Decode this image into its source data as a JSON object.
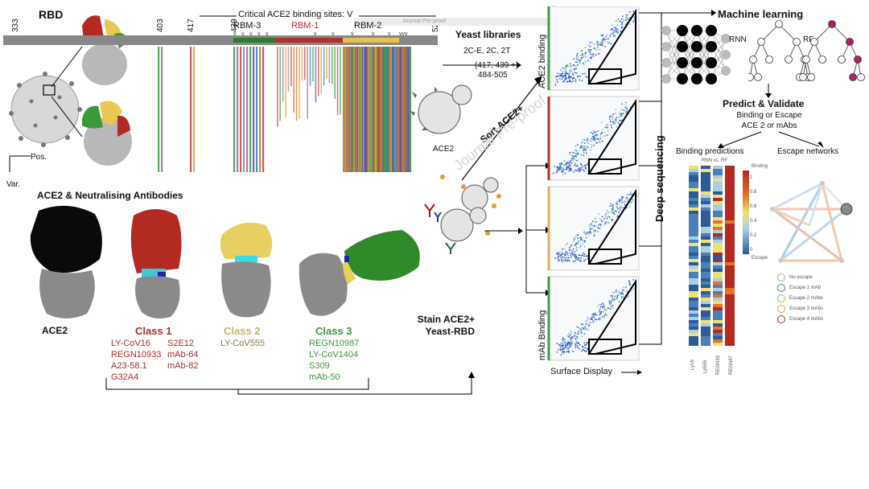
{
  "rbd": {
    "title": "RBD",
    "critical_label": "Critical ACE2 binding sites: V",
    "positions": [
      "333",
      "403",
      "417",
      "439",
      "52"
    ],
    "rbm_labels": [
      "RBM-3",
      "RBM-1",
      "RBM-2"
    ],
    "axis_x": "Pos.",
    "axis_y": "Var.",
    "watermark_top": "Journal Pre-proof"
  },
  "ace2_section": {
    "title": "ACE2 & Neutralising Antibodies",
    "ace2_label": "ACE2",
    "class1": {
      "title": "Class 1",
      "col1": [
        "LY-CoV16",
        "REGN10933",
        "A23-58.1",
        "G32A4"
      ],
      "col2": [
        "S2E12",
        "mAb-64",
        "mAb-82"
      ]
    },
    "class2": {
      "title": "Class 2",
      "items": [
        "LY-CoV555"
      ]
    },
    "class3": {
      "title": "Class 3",
      "items": [
        "REGN10987",
        "LY-CoV1404",
        "S309",
        "mAb-50"
      ]
    },
    "colors": {
      "class1": "#a8302a",
      "class2": "#c9b46a",
      "class3": "#3b9a3b",
      "ace2": "#000000"
    }
  },
  "yeast": {
    "title": "Yeast libraries",
    "mutations_line1": "2C-E, 2C, 2T",
    "mutations_line2": "(417, 439 +)",
    "mutations_line3": "484-505",
    "ace2_label": "ACE2",
    "sort_label": "Sort ACE2+",
    "stain_line1": "Stain ACE2+",
    "stain_line2": "Yeast-RBD",
    "watermark": "Journal Pre-proof"
  },
  "flow": {
    "y_top": "ACE2 binding",
    "y_bottom": "mAb Binding",
    "x_label": "Surface Display",
    "deep_seq": "Deep sequencing",
    "panel_colors": [
      "#3aa04a",
      "#b03030",
      "#e0b060",
      "#3aa04a"
    ]
  },
  "ml": {
    "title": "Machine learning",
    "rnn": "RNN",
    "rf": "RF",
    "predict_title": "Predict & Validate",
    "predict_sub1": "Binding or Escape",
    "predict_sub2": "ACE 2 or mAbs",
    "binding_title": "Binding predictions",
    "binding_sub": "RNN vs. RF",
    "escape_title": "Escape networks",
    "heat_cols": [
      "Ly16",
      "Ly555",
      "REGN33",
      "REGN87"
    ],
    "colorbar_top": "Binding",
    "colorbar_bottom": "Escape",
    "colorbar_ticks": [
      "1",
      "0.8",
      "0.6",
      "0.4",
      "0.2",
      "0"
    ],
    "legend": [
      {
        "label": "No escape",
        "color": "#aaaaaa"
      },
      {
        "label": "Escape 1 mAb",
        "color": "#2a8fb0"
      },
      {
        "label": "Escape 2 mAbs",
        "color": "#a8c040"
      },
      {
        "label": "Escape 3 mAbs",
        "color": "#e0a030"
      },
      {
        "label": "Escape 4 mAbs",
        "color": "#b02a2a"
      }
    ]
  }
}
